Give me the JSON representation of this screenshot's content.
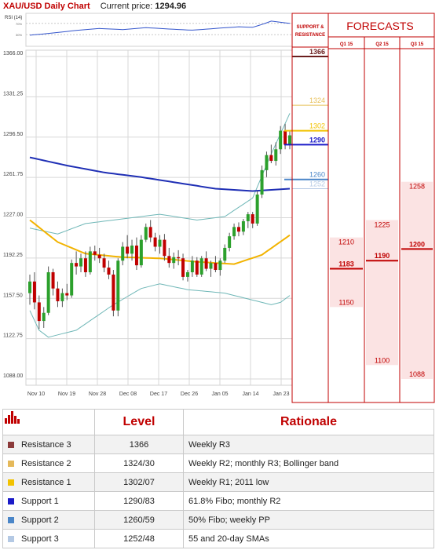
{
  "header": {
    "title": "XAU/USD Daily Chart",
    "price_label": "Current price:",
    "price_value": "1294.96"
  },
  "rsi": {
    "label": "RSI (14)",
    "ticks": [
      "70%",
      "30%"
    ]
  },
  "chart_data": {
    "type": "candlestick",
    "x_labels": [
      "Nov 10",
      "Nov 19",
      "Nov 28",
      "Dec 08",
      "Dec 17",
      "Dec 26",
      "Jan 05",
      "Jan 14",
      "Jan 23"
    ],
    "y_ticks": [
      "1366.00",
      "1331.25",
      "1296.50",
      "1261.75",
      "1227.00",
      "1192.25",
      "1157.50",
      "1122.75",
      "1088.00"
    ],
    "ylim": [
      1088,
      1366
    ],
    "grid": true,
    "candles": [
      {
        "o": 1162,
        "h": 1178,
        "l": 1152,
        "c": 1172
      },
      {
        "o": 1172,
        "h": 1180,
        "l": 1148,
        "c": 1154
      },
      {
        "o": 1154,
        "h": 1160,
        "l": 1131,
        "c": 1138
      },
      {
        "o": 1138,
        "h": 1150,
        "l": 1132,
        "c": 1145
      },
      {
        "o": 1145,
        "h": 1185,
        "l": 1143,
        "c": 1180
      },
      {
        "o": 1180,
        "h": 1183,
        "l": 1160,
        "c": 1166
      },
      {
        "o": 1166,
        "h": 1172,
        "l": 1150,
        "c": 1155
      },
      {
        "o": 1155,
        "h": 1166,
        "l": 1150,
        "c": 1162
      },
      {
        "o": 1162,
        "h": 1170,
        "l": 1156,
        "c": 1160
      },
      {
        "o": 1160,
        "h": 1191,
        "l": 1158,
        "c": 1188
      },
      {
        "o": 1188,
        "h": 1198,
        "l": 1178,
        "c": 1185
      },
      {
        "o": 1185,
        "h": 1196,
        "l": 1180,
        "c": 1192
      },
      {
        "o": 1192,
        "h": 1198,
        "l": 1176,
        "c": 1180
      },
      {
        "o": 1180,
        "h": 1202,
        "l": 1178,
        "c": 1198
      },
      {
        "o": 1198,
        "h": 1203,
        "l": 1190,
        "c": 1195
      },
      {
        "o": 1195,
        "h": 1201,
        "l": 1188,
        "c": 1192
      },
      {
        "o": 1192,
        "h": 1196,
        "l": 1180,
        "c": 1184
      },
      {
        "o": 1184,
        "h": 1190,
        "l": 1174,
        "c": 1178
      },
      {
        "o": 1178,
        "h": 1182,
        "l": 1142,
        "c": 1147
      },
      {
        "o": 1147,
        "h": 1192,
        "l": 1142,
        "c": 1190
      },
      {
        "o": 1190,
        "h": 1206,
        "l": 1186,
        "c": 1202
      },
      {
        "o": 1202,
        "h": 1212,
        "l": 1192,
        "c": 1196
      },
      {
        "o": 1196,
        "h": 1208,
        "l": 1190,
        "c": 1203
      },
      {
        "o": 1203,
        "h": 1210,
        "l": 1182,
        "c": 1186
      },
      {
        "o": 1186,
        "h": 1212,
        "l": 1184,
        "c": 1208
      },
      {
        "o": 1208,
        "h": 1222,
        "l": 1206,
        "c": 1219
      },
      {
        "o": 1219,
        "h": 1225,
        "l": 1206,
        "c": 1210
      },
      {
        "o": 1210,
        "h": 1214,
        "l": 1198,
        "c": 1202
      },
      {
        "o": 1202,
        "h": 1212,
        "l": 1196,
        "c": 1208
      },
      {
        "o": 1208,
        "h": 1213,
        "l": 1190,
        "c": 1194
      },
      {
        "o": 1194,
        "h": 1201,
        "l": 1184,
        "c": 1188
      },
      {
        "o": 1188,
        "h": 1197,
        "l": 1183,
        "c": 1193
      },
      {
        "o": 1193,
        "h": 1199,
        "l": 1186,
        "c": 1192
      },
      {
        "o": 1192,
        "h": 1196,
        "l": 1173,
        "c": 1176
      },
      {
        "o": 1176,
        "h": 1182,
        "l": 1172,
        "c": 1180
      },
      {
        "o": 1180,
        "h": 1194,
        "l": 1176,
        "c": 1190
      },
      {
        "o": 1190,
        "h": 1193,
        "l": 1176,
        "c": 1178
      },
      {
        "o": 1178,
        "h": 1194,
        "l": 1176,
        "c": 1192
      },
      {
        "o": 1192,
        "h": 1198,
        "l": 1181,
        "c": 1183
      },
      {
        "o": 1183,
        "h": 1190,
        "l": 1176,
        "c": 1188
      },
      {
        "o": 1188,
        "h": 1194,
        "l": 1180,
        "c": 1182
      },
      {
        "o": 1182,
        "h": 1192,
        "l": 1177,
        "c": 1190
      },
      {
        "o": 1190,
        "h": 1204,
        "l": 1188,
        "c": 1201
      },
      {
        "o": 1201,
        "h": 1214,
        "l": 1198,
        "c": 1211
      },
      {
        "o": 1211,
        "h": 1222,
        "l": 1208,
        "c": 1219
      },
      {
        "o": 1219,
        "h": 1223,
        "l": 1211,
        "c": 1215
      },
      {
        "o": 1215,
        "h": 1226,
        "l": 1212,
        "c": 1224
      },
      {
        "o": 1224,
        "h": 1232,
        "l": 1218,
        "c": 1230
      },
      {
        "o": 1230,
        "h": 1232,
        "l": 1218,
        "c": 1222
      },
      {
        "o": 1222,
        "h": 1250,
        "l": 1220,
        "c": 1247
      },
      {
        "o": 1247,
        "h": 1272,
        "l": 1244,
        "c": 1268
      },
      {
        "o": 1268,
        "h": 1284,
        "l": 1262,
        "c": 1281
      },
      {
        "o": 1281,
        "h": 1290,
        "l": 1274,
        "c": 1276
      },
      {
        "o": 1276,
        "h": 1292,
        "l": 1272,
        "c": 1286
      },
      {
        "o": 1286,
        "h": 1306,
        "l": 1282,
        "c": 1302
      },
      {
        "o": 1302,
        "h": 1308,
        "l": 1286,
        "c": 1290
      },
      {
        "o": 1290,
        "h": 1302,
        "l": 1286,
        "c": 1298
      }
    ],
    "sma20_anchors": [
      [
        0,
        1225
      ],
      [
        6,
        1206
      ],
      [
        12,
        1196
      ],
      [
        20,
        1193
      ],
      [
        28,
        1192
      ],
      [
        36,
        1189
      ],
      [
        44,
        1187
      ],
      [
        50,
        1195
      ],
      [
        56,
        1212
      ]
    ],
    "sma55_anchors": [
      [
        0,
        1279
      ],
      [
        8,
        1272
      ],
      [
        16,
        1266
      ],
      [
        24,
        1262
      ],
      [
        32,
        1257
      ],
      [
        40,
        1252
      ],
      [
        48,
        1250
      ],
      [
        56,
        1252
      ]
    ],
    "bb_upper_anchors": [
      [
        0,
        1218
      ],
      [
        6,
        1213
      ],
      [
        12,
        1222
      ],
      [
        20,
        1226
      ],
      [
        28,
        1230
      ],
      [
        36,
        1225
      ],
      [
        42,
        1228
      ],
      [
        48,
        1244
      ],
      [
        52,
        1282
      ],
      [
        56,
        1317
      ]
    ],
    "bb_lower_anchors": [
      [
        0,
        1147
      ],
      [
        2,
        1130
      ],
      [
        4,
        1124
      ],
      [
        10,
        1130
      ],
      [
        18,
        1152
      ],
      [
        24,
        1166
      ],
      [
        28,
        1170
      ],
      [
        34,
        1165
      ],
      [
        42,
        1162
      ],
      [
        48,
        1156
      ],
      [
        52,
        1152
      ],
      [
        54,
        1154
      ],
      [
        56,
        1160
      ]
    ],
    "rsi_anchors": [
      [
        0,
        0.28
      ],
      [
        5,
        0.36
      ],
      [
        10,
        0.45
      ],
      [
        15,
        0.52
      ],
      [
        20,
        0.48
      ],
      [
        25,
        0.55
      ],
      [
        30,
        0.5
      ],
      [
        35,
        0.46
      ],
      [
        40,
        0.52
      ],
      [
        45,
        0.58
      ],
      [
        48,
        0.56
      ],
      [
        50,
        0.66
      ],
      [
        52,
        0.78
      ],
      [
        54,
        0.74
      ],
      [
        56,
        0.7
      ]
    ]
  },
  "levels": [
    {
      "label": "1366",
      "value": 1366,
      "color": "#6b1e1e"
    },
    {
      "label": "1324",
      "value": 1324,
      "color": "#e8c15a"
    },
    {
      "label": "1302",
      "value": 1302,
      "color": "#f2c200"
    },
    {
      "label": "1290",
      "value": 1290,
      "color": "#1a1ac8"
    },
    {
      "label": "1260",
      "value": 1260,
      "color": "#4a86c8"
    },
    {
      "label": "1252",
      "value": 1252,
      "color": "#b4c9e4"
    }
  ],
  "sr_header": [
    "SUPPORT &",
    "RESISTANCE"
  ],
  "forecasts": {
    "title": "FORECASTS",
    "columns": [
      "Q1 15",
      "Q2 15",
      "Q3 15"
    ],
    "q1": {
      "high": "1210",
      "avg": "1183",
      "low": "1150",
      "high_v": 1210,
      "avg_v": 1183,
      "low_v": 1150
    },
    "q2": {
      "high": "1225",
      "avg": "1190",
      "low": "1100",
      "high_v": 1225,
      "avg_v": 1190,
      "low_v": 1100
    },
    "q3": {
      "high": "1258",
      "avg": "1200",
      "low": "1088",
      "high_v": 1258,
      "avg_v": 1200,
      "low_v": 1088
    }
  },
  "colors": {
    "bull": "#2ca02c",
    "bear": "#c00000",
    "accent": "#c00000",
    "sma55": "#1f2fb5",
    "sma20": "#f2b300",
    "bb": "#6fb7b7"
  },
  "table": {
    "headers": [
      "Level",
      "Rationale"
    ],
    "icon": "bar-chart-icon",
    "rows": [
      {
        "name": "Resistance 3",
        "level": "1366",
        "rationale": "Weekly R3",
        "color": "#8b3a3a"
      },
      {
        "name": "Resistance 2",
        "level": "1324/30",
        "rationale": "Weekly R2; monthly R3; Bollinger band",
        "color": "#e5b95a"
      },
      {
        "name": "Resistance 1",
        "level": "1302/07",
        "rationale": "Weekly R1; 2011 low",
        "color": "#f2c200"
      },
      {
        "name": "Support 1",
        "level": "1290/83",
        "rationale": "61.8% Fibo; monthly R2",
        "color": "#1a1ac8"
      },
      {
        "name": "Support 2",
        "level": "1260/59",
        "rationale": "50% Fibo; weekly PP",
        "color": "#4a86c8"
      },
      {
        "name": "Support 3",
        "level": "1252/48",
        "rationale": "55 and 20-day SMAs",
        "color": "#b4c9e4"
      }
    ]
  }
}
